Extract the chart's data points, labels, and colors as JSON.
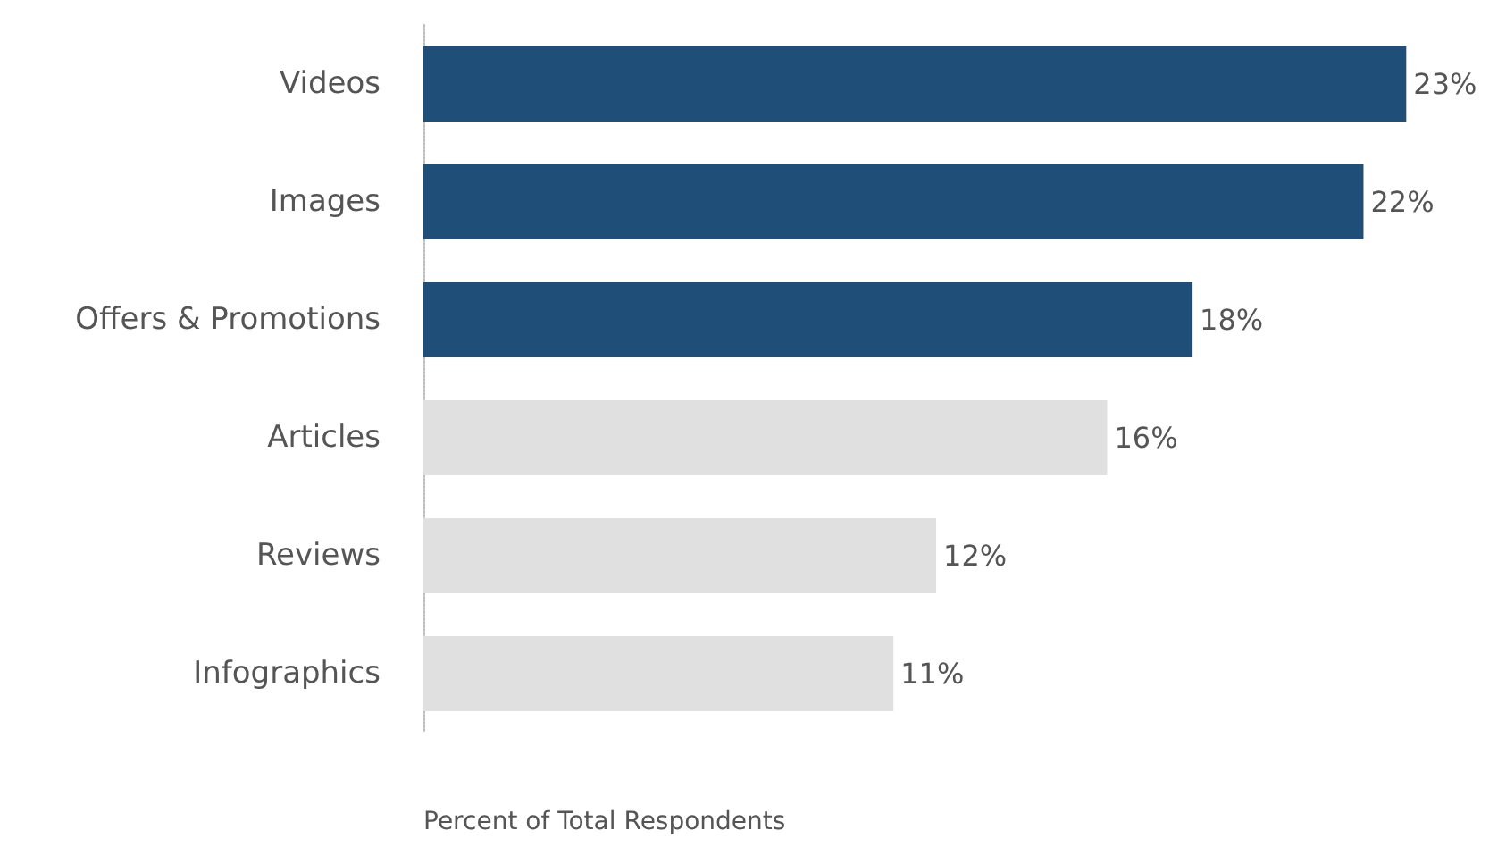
{
  "chart_data": {
    "type": "bar",
    "orientation": "horizontal",
    "xlabel": "Percent of Total Respondents",
    "categories": [
      "Videos",
      "Images",
      "Offers & Promotions",
      "Articles",
      "Reviews",
      "Infographics"
    ],
    "values": [
      23,
      22,
      18,
      16,
      12,
      11
    ],
    "colors": [
      "#1f4e79",
      "#1f4e79",
      "#1f4e79",
      "#e0e0e0",
      "#e0e0e0",
      "#e0e0e0"
    ],
    "value_labels": [
      "23%",
      "22%",
      "18%",
      "16%",
      "12%",
      "11%"
    ],
    "tick_labels": "y"
  }
}
